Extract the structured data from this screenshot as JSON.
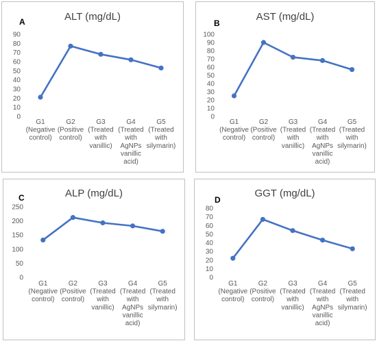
{
  "chart_data": [
    {
      "type": "line",
      "panel": "A",
      "title": "ALT (mg/dL)",
      "categories": [
        [
          "G1",
          "(Negative",
          "control)"
        ],
        [
          "G2",
          "(Positive",
          "control)"
        ],
        [
          "G3",
          "(Treated",
          "with",
          "vanillic)"
        ],
        [
          "G4",
          "(Treated",
          "with",
          "AgNPs",
          "vanillic",
          "acid)"
        ],
        [
          "G5",
          "(Treated",
          "with",
          "silymarin)"
        ]
      ],
      "series": [
        {
          "values": [
            21,
            77,
            68,
            62,
            53
          ]
        }
      ],
      "ylim": [
        0,
        90
      ],
      "yticks": [
        0,
        10,
        20,
        30,
        40,
        50,
        60,
        70,
        80,
        90
      ],
      "color": "#4472c4",
      "grid": false
    },
    {
      "type": "line",
      "panel": "B",
      "title": "AST (mg/dL)",
      "categories": [
        [
          "G1",
          "(Negative",
          "control)"
        ],
        [
          "G2",
          "(Positive",
          "control)"
        ],
        [
          "G3",
          "(Treated",
          "with",
          "vanillic)"
        ],
        [
          "G4",
          "(Treated",
          "with",
          "AgNPs",
          "vanillic",
          "acid)"
        ],
        [
          "G5",
          "(Treated",
          "with",
          "silymarin)"
        ]
      ],
      "series": [
        {
          "values": [
            25,
            90,
            72,
            68,
            57
          ]
        }
      ],
      "ylim": [
        0,
        100
      ],
      "yticks": [
        0,
        10,
        20,
        30,
        40,
        50,
        60,
        70,
        80,
        90,
        100
      ],
      "color": "#4472c4",
      "grid": false
    },
    {
      "type": "line",
      "panel": "C",
      "title": "ALP (mg/dL)",
      "categories": [
        [
          "G1",
          "(Negative",
          "control)"
        ],
        [
          "G2",
          "(Positive",
          "control)"
        ],
        [
          "G3",
          "(Treated",
          "with",
          "vanillic)"
        ],
        [
          "G4",
          "(Treated",
          "with",
          "AgNPs",
          "vanillic",
          "acid)"
        ],
        [
          "G5",
          "(Treated",
          "with",
          "silymarin)"
        ]
      ],
      "series": [
        {
          "values": [
            132,
            212,
            193,
            182,
            163
          ]
        }
      ],
      "ylim": [
        0,
        250
      ],
      "yticks": [
        0,
        50,
        100,
        150,
        200,
        250
      ],
      "color": "#4472c4",
      "grid": false
    },
    {
      "type": "line",
      "panel": "D",
      "title": "GGT (mg/dL)",
      "categories": [
        [
          "G1",
          "(Negative",
          "control)"
        ],
        [
          "G2",
          "(Positive",
          "control)"
        ],
        [
          "G3",
          "(Treated",
          "with",
          "vanillic)"
        ],
        [
          "G4",
          "(Treated",
          "with",
          "AgNPs",
          "vanillic",
          "acid)"
        ],
        [
          "G5",
          "(Treated",
          "with",
          "silymarin)"
        ]
      ],
      "series": [
        {
          "values": [
            22,
            67,
            54,
            43,
            33
          ]
        }
      ],
      "ylim": [
        0,
        80
      ],
      "yticks": [
        0,
        10,
        20,
        30,
        40,
        50,
        60,
        70,
        80
      ],
      "color": "#4472c4",
      "grid": false
    }
  ]
}
